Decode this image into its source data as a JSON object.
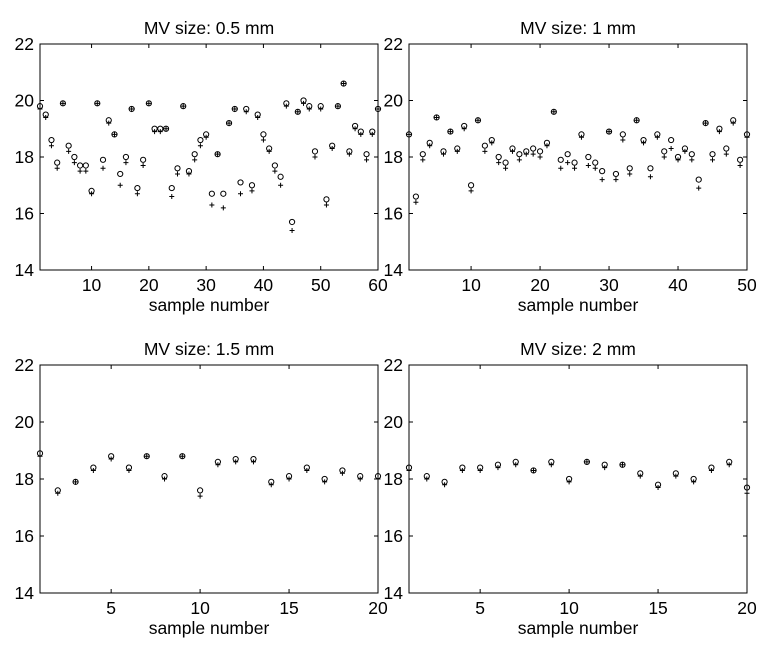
{
  "chart_data": [
    {
      "type": "scatter",
      "title": "MV size: 0.5 mm",
      "xlabel": "sample number",
      "ylabel": "",
      "xlim": [
        1,
        60
      ],
      "ylim": [
        14,
        22
      ],
      "xticks": [
        10,
        20,
        30,
        40,
        50,
        60
      ],
      "yticks": [
        14,
        16,
        18,
        20,
        22
      ],
      "grid": false,
      "series": [
        {
          "marker": "circle",
          "color": "#000000",
          "x": [
            1,
            2,
            3,
            4,
            5,
            6,
            7,
            8,
            9,
            10,
            11,
            12,
            13,
            14,
            15,
            16,
            17,
            18,
            19,
            20,
            21,
            22,
            23,
            24,
            25,
            26,
            27,
            28,
            29,
            30,
            31,
            32,
            33,
            34,
            35,
            36,
            37,
            38,
            39,
            40,
            41,
            42,
            43,
            44,
            45,
            46,
            47,
            48,
            49,
            50,
            51,
            52,
            53,
            54,
            55,
            56,
            57,
            58,
            59,
            60
          ],
          "y": [
            19.8,
            19.5,
            18.6,
            17.8,
            19.9,
            18.4,
            18.0,
            17.7,
            17.7,
            16.8,
            19.9,
            17.9,
            19.3,
            18.8,
            17.4,
            18.0,
            19.7,
            16.9,
            17.9,
            19.9,
            19.0,
            19.0,
            19.0,
            16.9,
            17.6,
            19.8,
            17.5,
            18.1,
            18.6,
            18.8,
            16.7,
            18.1,
            16.7,
            19.2,
            19.7,
            17.1,
            19.7,
            17.0,
            19.5,
            18.8,
            18.3,
            17.7,
            17.3,
            19.9,
            15.7,
            19.6,
            20.0,
            19.8,
            18.2,
            19.8,
            16.5,
            18.4,
            19.8,
            20.6,
            18.2,
            19.1,
            18.9,
            18.1,
            18.9,
            19.7
          ]
        },
        {
          "marker": "plus",
          "color": "#000000",
          "x": [
            1,
            2,
            3,
            4,
            5,
            6,
            7,
            8,
            9,
            10,
            11,
            12,
            13,
            14,
            15,
            16,
            17,
            18,
            19,
            20,
            21,
            22,
            23,
            24,
            25,
            26,
            27,
            28,
            29,
            30,
            31,
            32,
            33,
            34,
            35,
            36,
            37,
            38,
            39,
            40,
            41,
            42,
            43,
            44,
            45,
            46,
            47,
            48,
            49,
            50,
            51,
            52,
            53,
            54,
            55,
            56,
            57,
            58,
            59,
            60
          ],
          "y": [
            19.7,
            19.4,
            18.4,
            17.6,
            19.9,
            18.2,
            17.8,
            17.5,
            17.5,
            16.7,
            19.9,
            17.6,
            19.2,
            18.8,
            17.0,
            17.8,
            19.7,
            16.7,
            17.7,
            19.9,
            18.9,
            18.9,
            19.0,
            16.6,
            17.4,
            19.8,
            17.4,
            17.9,
            18.4,
            18.7,
            16.3,
            18.1,
            16.2,
            19.2,
            19.7,
            16.7,
            19.6,
            16.8,
            19.4,
            18.6,
            18.2,
            17.5,
            17.0,
            19.8,
            15.4,
            19.6,
            19.9,
            19.7,
            18.0,
            19.7,
            16.3,
            18.3,
            19.8,
            20.6,
            18.1,
            19.0,
            18.8,
            17.9,
            18.8,
            19.7
          ]
        }
      ]
    },
    {
      "type": "scatter",
      "title": "MV size: 1 mm",
      "xlabel": "sample number",
      "ylabel": "",
      "xlim": [
        1,
        50
      ],
      "ylim": [
        14,
        22
      ],
      "xticks": [
        10,
        20,
        30,
        40,
        50
      ],
      "yticks": [
        14,
        16,
        18,
        20,
        22
      ],
      "grid": false,
      "series": [
        {
          "marker": "circle",
          "color": "#000000",
          "x": [
            1,
            2,
            3,
            4,
            5,
            6,
            7,
            8,
            9,
            10,
            11,
            12,
            13,
            14,
            15,
            16,
            17,
            18,
            19,
            20,
            21,
            22,
            23,
            24,
            25,
            26,
            27,
            28,
            29,
            30,
            31,
            32,
            33,
            34,
            35,
            36,
            37,
            38,
            39,
            40,
            41,
            42,
            43,
            44,
            45,
            46,
            47,
            48,
            49,
            50
          ],
          "y": [
            18.8,
            16.6,
            18.1,
            18.5,
            19.4,
            18.2,
            18.9,
            18.3,
            19.1,
            17.0,
            19.3,
            18.4,
            18.6,
            18.0,
            17.8,
            18.3,
            18.1,
            18.2,
            18.3,
            18.2,
            18.5,
            19.6,
            17.9,
            18.1,
            17.8,
            18.8,
            18.0,
            17.8,
            17.5,
            18.9,
            17.4,
            18.8,
            17.6,
            19.3,
            18.6,
            17.6,
            18.8,
            18.2,
            18.6,
            18.0,
            18.3,
            18.1,
            17.2,
            19.2,
            18.1,
            19.0,
            18.3,
            19.3,
            17.9,
            18.8
          ]
        },
        {
          "marker": "plus",
          "color": "#000000",
          "x": [
            1,
            2,
            3,
            4,
            5,
            6,
            7,
            8,
            9,
            10,
            11,
            12,
            13,
            14,
            15,
            16,
            17,
            18,
            19,
            20,
            21,
            22,
            23,
            24,
            25,
            26,
            27,
            28,
            29,
            30,
            31,
            32,
            33,
            34,
            35,
            36,
            37,
            38,
            39,
            40,
            41,
            42,
            43,
            44,
            45,
            46,
            47,
            48,
            49,
            50
          ],
          "y": [
            18.8,
            16.4,
            17.9,
            18.4,
            19.4,
            18.1,
            18.9,
            18.2,
            19.0,
            16.8,
            19.3,
            18.2,
            18.5,
            17.8,
            17.6,
            18.2,
            17.9,
            18.1,
            18.1,
            18.0,
            18.4,
            19.6,
            17.6,
            17.8,
            17.6,
            18.7,
            17.7,
            17.6,
            17.2,
            18.9,
            17.2,
            18.6,
            17.4,
            19.3,
            18.5,
            17.3,
            18.7,
            18.0,
            18.3,
            17.9,
            18.2,
            17.9,
            16.9,
            19.2,
            17.9,
            18.9,
            18.1,
            19.2,
            17.7,
            18.7
          ]
        }
      ]
    },
    {
      "type": "scatter",
      "title": "MV size: 1.5 mm",
      "xlabel": "sample number",
      "ylabel": "",
      "xlim": [
        1,
        20
      ],
      "ylim": [
        14,
        22
      ],
      "xticks": [
        5,
        10,
        15,
        20
      ],
      "yticks": [
        14,
        16,
        18,
        20,
        22
      ],
      "grid": false,
      "series": [
        {
          "marker": "circle",
          "color": "#000000",
          "x": [
            1,
            2,
            3,
            4,
            5,
            6,
            7,
            8,
            9,
            10,
            11,
            12,
            13,
            14,
            15,
            16,
            17,
            18,
            19,
            20
          ],
          "y": [
            18.9,
            17.6,
            17.9,
            18.4,
            18.8,
            18.4,
            18.8,
            18.1,
            18.8,
            17.6,
            18.6,
            18.7,
            18.7,
            17.9,
            18.1,
            18.4,
            18.0,
            18.3,
            18.1,
            18.1
          ]
        },
        {
          "marker": "plus",
          "color": "#000000",
          "x": [
            1,
            2,
            3,
            4,
            5,
            6,
            7,
            8,
            9,
            10,
            11,
            12,
            13,
            14,
            15,
            16,
            17,
            18,
            19,
            20
          ],
          "y": [
            18.8,
            17.5,
            17.9,
            18.3,
            18.7,
            18.3,
            18.8,
            18.0,
            18.8,
            17.4,
            18.5,
            18.6,
            18.6,
            17.8,
            18.0,
            18.3,
            17.9,
            18.2,
            18.0,
            18.0
          ]
        }
      ]
    },
    {
      "type": "scatter",
      "title": "MV size: 2 mm",
      "xlabel": "sample number",
      "ylabel": "",
      "xlim": [
        1,
        20
      ],
      "ylim": [
        14,
        22
      ],
      "xticks": [
        5,
        10,
        15,
        20
      ],
      "yticks": [
        14,
        16,
        18,
        20,
        22
      ],
      "grid": false,
      "series": [
        {
          "marker": "circle",
          "color": "#000000",
          "x": [
            1,
            2,
            3,
            4,
            5,
            6,
            7,
            8,
            9,
            10,
            11,
            12,
            13,
            14,
            15,
            16,
            17,
            18,
            19,
            20
          ],
          "y": [
            18.4,
            18.1,
            17.9,
            18.4,
            18.4,
            18.5,
            18.6,
            18.3,
            18.6,
            18.0,
            18.6,
            18.5,
            18.5,
            18.2,
            17.8,
            18.2,
            18.0,
            18.4,
            18.6,
            17.7
          ]
        },
        {
          "marker": "plus",
          "color": "#000000",
          "x": [
            1,
            2,
            3,
            4,
            5,
            6,
            7,
            8,
            9,
            10,
            11,
            12,
            13,
            14,
            15,
            16,
            17,
            18,
            19,
            20
          ],
          "y": [
            18.3,
            18.0,
            17.8,
            18.3,
            18.3,
            18.4,
            18.5,
            18.3,
            18.5,
            17.9,
            18.6,
            18.4,
            18.5,
            18.1,
            17.7,
            18.1,
            17.9,
            18.3,
            18.5,
            17.5
          ]
        }
      ]
    }
  ]
}
